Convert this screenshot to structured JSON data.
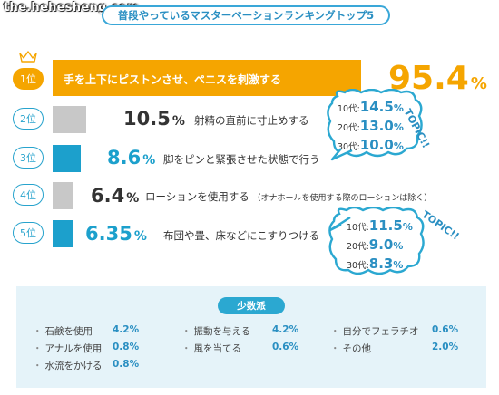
{
  "watermark": "the.hehesheng.com",
  "title": "普段やっているマスターベーションランキングトップ5",
  "percent_sign": "%",
  "chart_data": {
    "type": "bar",
    "title": "普段やっているマスターベーションランキングトップ5",
    "categories": [
      "手を上下にピストンさせ、ペニスを刺激する",
      "射精の直前に寸止めする",
      "脚をピンと緊張させた状態で行う",
      "ローションを使用する",
      "布団や畳、床などにこすりつける"
    ],
    "values": [
      95.4,
      10.5,
      8.6,
      6.4,
      6.35
    ],
    "colors": [
      "#f5a500",
      "#c8c8c8",
      "#1ca0cc",
      "#c8c8c8",
      "#1ca0cc"
    ],
    "xlim": [
      0,
      100
    ]
  },
  "ranks": [
    {
      "label": "1位",
      "value": "95.4",
      "desc": "手を上下にピストンさせ、ペニスを刺激する"
    },
    {
      "label": "2位",
      "value": "10.5",
      "desc": "射精の直前に寸止めする"
    },
    {
      "label": "3位",
      "value": "8.6",
      "desc": "脚をピンと緊張させた状態で行う"
    },
    {
      "label": "4位",
      "value": "6.4",
      "desc": "ローションを使用する",
      "note": "（オナホールを使用する際のローションは除く）"
    },
    {
      "label": "5位",
      "value": "6.35",
      "desc": "布団や畳、床などにこすりつける"
    }
  ],
  "topics": [
    {
      "label": "TOPIC!!",
      "rows": [
        {
          "age": "10代:",
          "value": "14.5",
          "unit": "%"
        },
        {
          "age": "20代:",
          "value": "13.0",
          "unit": "%"
        },
        {
          "age": "30代:",
          "value": "10.0",
          "unit": "%"
        }
      ]
    },
    {
      "label": "TOPIC!!",
      "rows": [
        {
          "age": "10代:",
          "value": "11.5",
          "unit": "%"
        },
        {
          "age": "20代:",
          "value": "9.0",
          "unit": "%"
        },
        {
          "age": "30代:",
          "value": "8.3",
          "unit": "%"
        }
      ]
    }
  ],
  "minority": {
    "title": "少数派",
    "items": [
      {
        "label": "石鹸を使用",
        "value": "4.2%"
      },
      {
        "label": "振動を与える",
        "value": "4.2%"
      },
      {
        "label": "自分でフェラチオ",
        "value": "0.6%"
      },
      {
        "label": "アナルを使用",
        "value": "0.8%"
      },
      {
        "label": "風を当てる",
        "value": "0.6%"
      },
      {
        "label": "その他",
        "value": "2.0%"
      },
      {
        "label": "水流をかける",
        "value": "0.8%"
      }
    ]
  }
}
